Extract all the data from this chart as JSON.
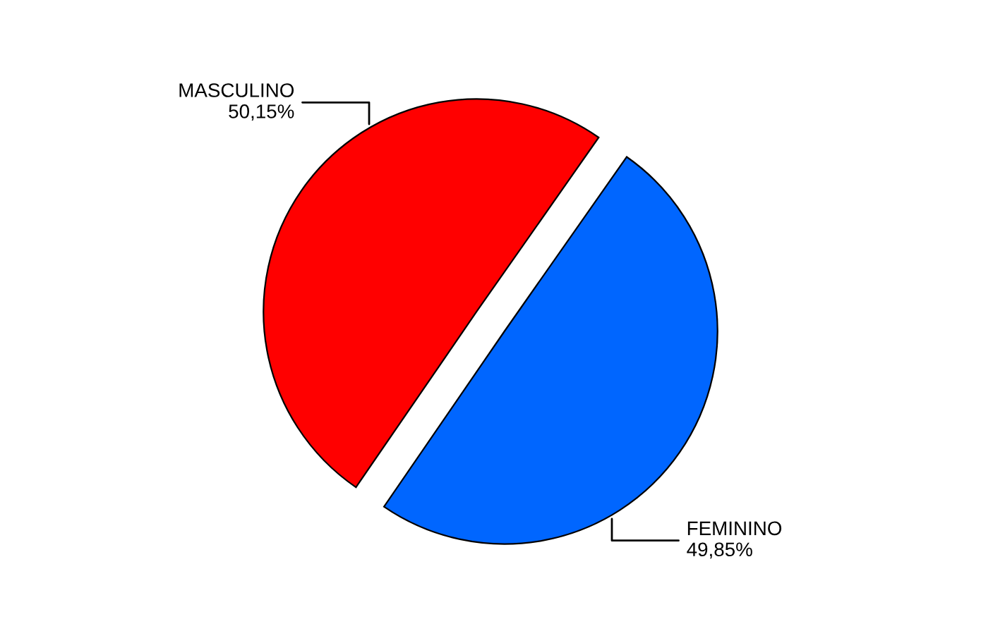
{
  "chart_data": {
    "type": "pie",
    "categories": [
      "MASCULINO",
      "FEMININO"
    ],
    "values": [
      50.15,
      49.85
    ],
    "colors": [
      "#ff0000",
      "#0066ff"
    ],
    "value_labels": [
      "50,15%",
      "49,85%"
    ]
  }
}
